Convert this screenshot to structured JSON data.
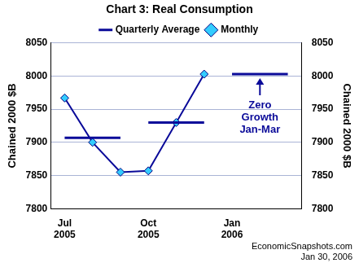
{
  "chart_data": {
    "type": "line",
    "title": "Chart 3: Real Consumption",
    "categories": [
      "Jul 2005",
      null,
      null,
      "Oct 2005",
      null,
      null,
      "Jan 2006",
      null,
      null
    ],
    "series": [
      {
        "name": "Quarterly Average",
        "color": "#0a0a99",
        "line_style": "segments",
        "values": [
          7907,
          7907,
          7907,
          7930,
          7930,
          7930,
          8003,
          8003,
          8003
        ]
      },
      {
        "name": "Monthly",
        "color": "#0a0a99",
        "marker": "diamond",
        "values": [
          7967,
          7900,
          7855,
          7857,
          7930,
          8003,
          null,
          null,
          null
        ]
      }
    ],
    "ylabel": "Chained 2000 $B",
    "y2label": "Chained 2000 $B",
    "ylim": [
      7800,
      8050
    ],
    "yticks": [
      7800,
      7850,
      7900,
      7950,
      8000,
      8050
    ],
    "y2lim": [
      7800,
      8050
    ],
    "y2ticks": [
      7800,
      7850,
      7900,
      7950,
      8000,
      8050
    ],
    "grid": true,
    "legend": "top",
    "annotations": [
      "Zero Growth Jan-Mar"
    ],
    "source": [
      "EconomicSnapshots.com",
      "Jan 30, 2006"
    ]
  }
}
